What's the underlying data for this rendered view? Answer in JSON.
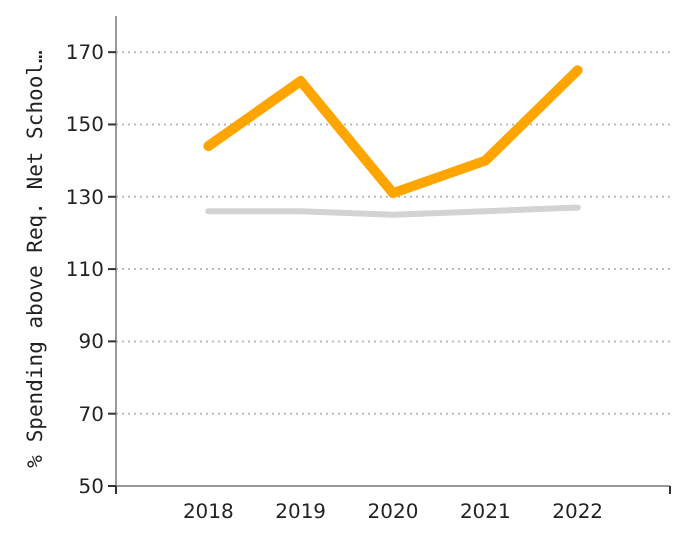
{
  "chart_data": {
    "type": "line",
    "ylabel": "% Spending above Req. Net School…",
    "categories": [
      "2018",
      "2019",
      "2020",
      "2021",
      "2022"
    ],
    "series": [
      {
        "color": "#ffa500",
        "values": [
          144,
          162,
          131,
          140,
          165
        ]
      },
      {
        "color": "#d3d3d3",
        "values": [
          126,
          126,
          125,
          126,
          127
        ]
      }
    ],
    "ylim": [
      50,
      180
    ],
    "yticks": [
      50,
      70,
      90,
      110,
      130,
      150,
      170
    ],
    "grid": "y",
    "marker": "none",
    "line_style": "solid"
  }
}
